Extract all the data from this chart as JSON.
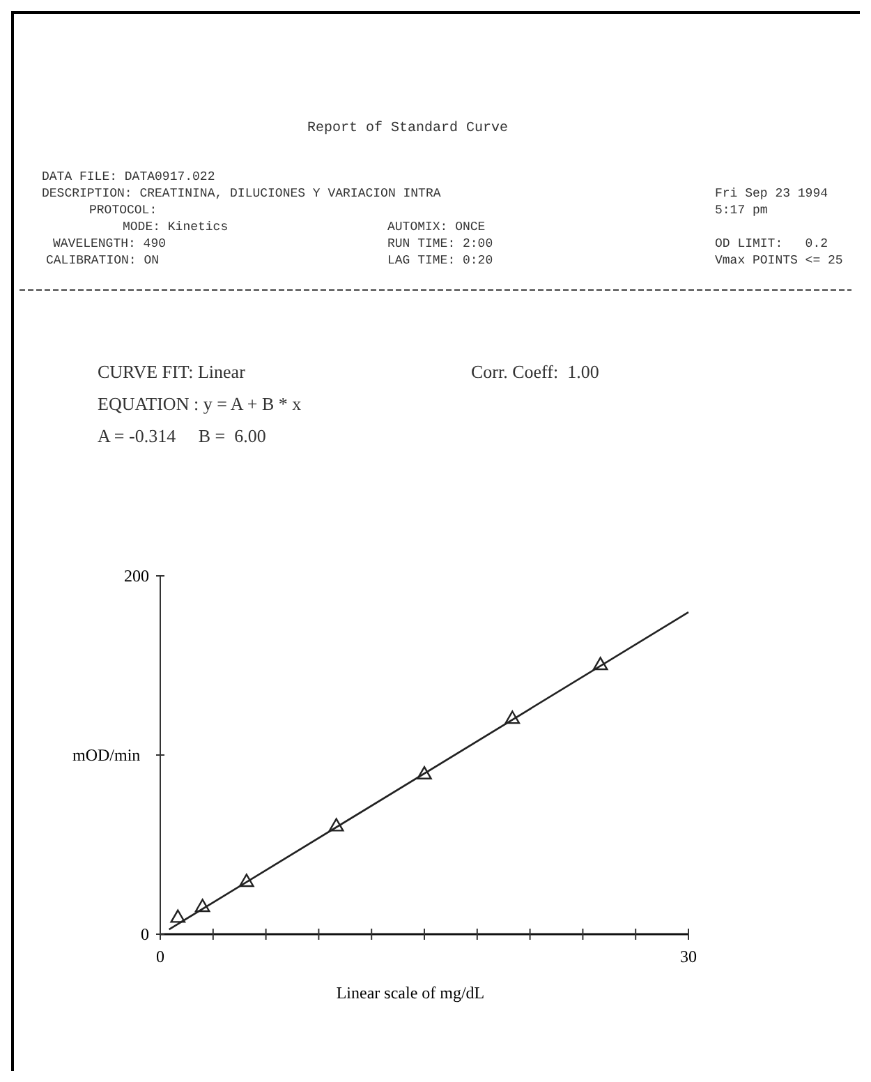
{
  "chart_data": {
    "type": "scatter",
    "title": "Report of Standard Curve",
    "xlabel": "Linear scale of mg/dL",
    "ylabel": "mOD/min",
    "annotations": [
      "DATA FILE: DATA0917.022",
      "DESCRIPTION: CREATININA, DILUCIONES Y VARIACION INTRA",
      "Fri Sep 23 1994",
      "PROTOCOL:",
      "5:17 pm",
      "MODE: Kinetics",
      "AUTOMIX: ONCE",
      "WAVELENGTH: 490",
      "RUN TIME: 2:00",
      "OD LIMIT:   0.2",
      "CALIBRATION: ON",
      "LAG TIME: 0:20",
      "Vmax POINTS <= 25",
      "CURVE FIT: Linear",
      "Corr. Coeff:  1.00",
      "EQUATION : y = A + B * x",
      "A = -0.314     B =  6.00"
    ],
    "xlim": [
      0,
      30
    ],
    "xticks": [
      0,
      {
        "value": 3,
        "label": null
      },
      {
        "value": 6,
        "label": null
      },
      {
        "value": 9,
        "label": null
      },
      {
        "value": 12,
        "label": null
      },
      {
        "value": 15,
        "label": null
      },
      {
        "value": 18,
        "label": null
      },
      {
        "value": 21,
        "label": null
      },
      {
        "value": 24,
        "label": null
      },
      {
        "value": 27,
        "label": null
      },
      30
    ],
    "ylim": [
      0,
      200
    ],
    "yticks": [
      0,
      {
        "value": 100,
        "label": null
      },
      200
    ],
    "marker": "triangle",
    "grid": false,
    "series": [
      {
        "color": "#222222",
        "x": [
          1,
          2.4,
          4.9,
          10,
          15,
          20,
          25
        ],
        "values": [
          9,
          15,
          29,
          60,
          89,
          120,
          150
        ]
      },
      {
        "type": "line",
        "color": "#222222",
        "marker": "none",
        "x": [
          0.5,
          30
        ],
        "values": [
          2.7,
          179.7
        ]
      }
    ]
  }
}
